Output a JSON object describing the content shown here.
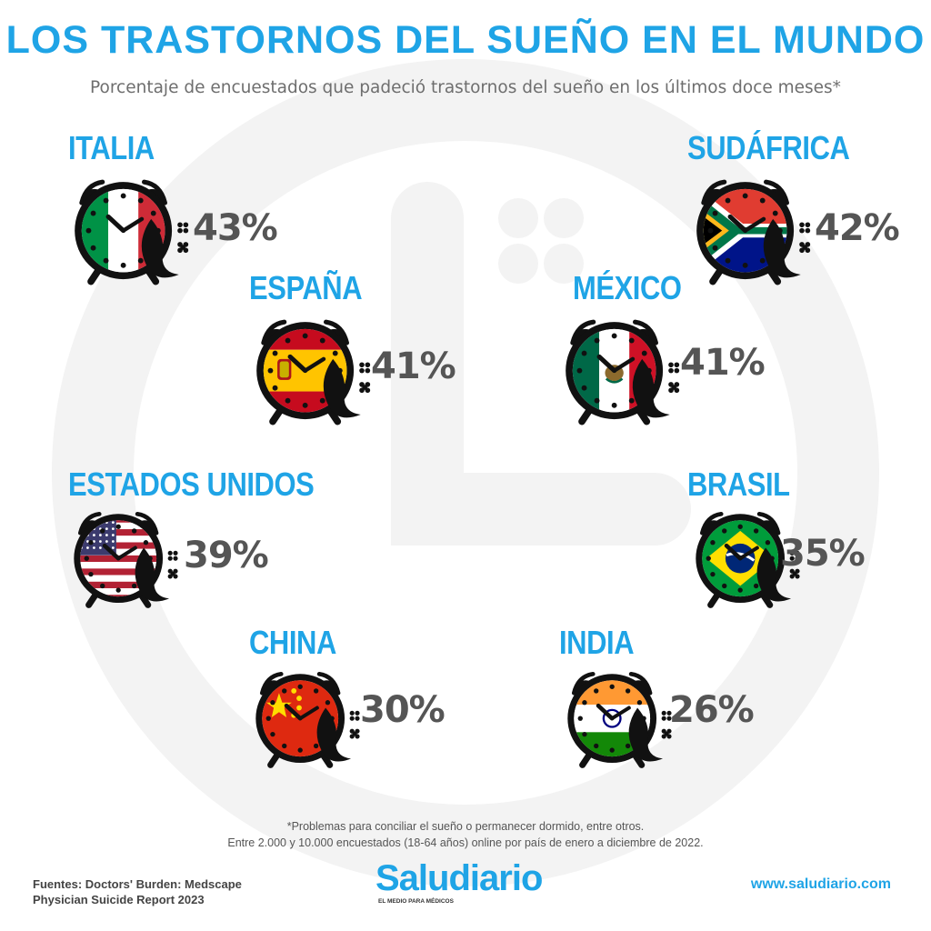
{
  "title": "LOS TRASTORNOS DEL SUEÑO EN EL MUNDO",
  "subtitle": "Porcentaje de encuestados que padeció trastornos del sueño en los últimos doce meses*",
  "colors": {
    "accent": "#1fa4e6",
    "value": "#555555",
    "background_icon": "#f3f3f3"
  },
  "chart_data": {
    "type": "pictograph",
    "unit": "%",
    "categories": [
      "ITALIA",
      "SUDÁFRICA",
      "ESPAÑA",
      "MÉXICO",
      "ESTADOS UNIDOS",
      "BRASIL",
      "CHINA",
      "INDIA"
    ],
    "values": [
      43,
      42,
      41,
      41,
      39,
      35,
      30,
      26
    ],
    "items": [
      {
        "country": "ITALIA",
        "value": 43,
        "label": "43%",
        "flag": "italy-flag"
      },
      {
        "country": "SUDÁFRICA",
        "value": 42,
        "label": "42%",
        "flag": "south-africa-flag"
      },
      {
        "country": "ESPAÑA",
        "value": 41,
        "label": "41%",
        "flag": "spain-flag"
      },
      {
        "country": "MÉXICO",
        "value": 41,
        "label": "41%",
        "flag": "mexico-flag"
      },
      {
        "country": "ESTADOS UNIDOS",
        "value": 39,
        "label": "39%",
        "flag": "usa-flag"
      },
      {
        "country": "BRASIL",
        "value": 35,
        "label": "35%",
        "flag": "brazil-flag"
      },
      {
        "country": "CHINA",
        "value": 30,
        "label": "30%",
        "flag": "china-flag"
      },
      {
        "country": "INDIA",
        "value": 26,
        "label": "26%",
        "flag": "india-flag"
      }
    ]
  },
  "footnote": {
    "line1": "*Problemas para conciliar el sueño o permanecer dormido, entre otros.",
    "line2": "Entre 2.000 y 10.000 encuestados (18-64  años) online por país de enero a diciembre de 2022."
  },
  "sources": {
    "line1": "Fuentes: Doctors' Burden: Medscape",
    "line2": "Physician Suicide Report 2023"
  },
  "brand": {
    "name": "Saludiario",
    "tagline": "EL MEDIO PARA MÉDICOS",
    "url": "www.saludiario.com"
  }
}
